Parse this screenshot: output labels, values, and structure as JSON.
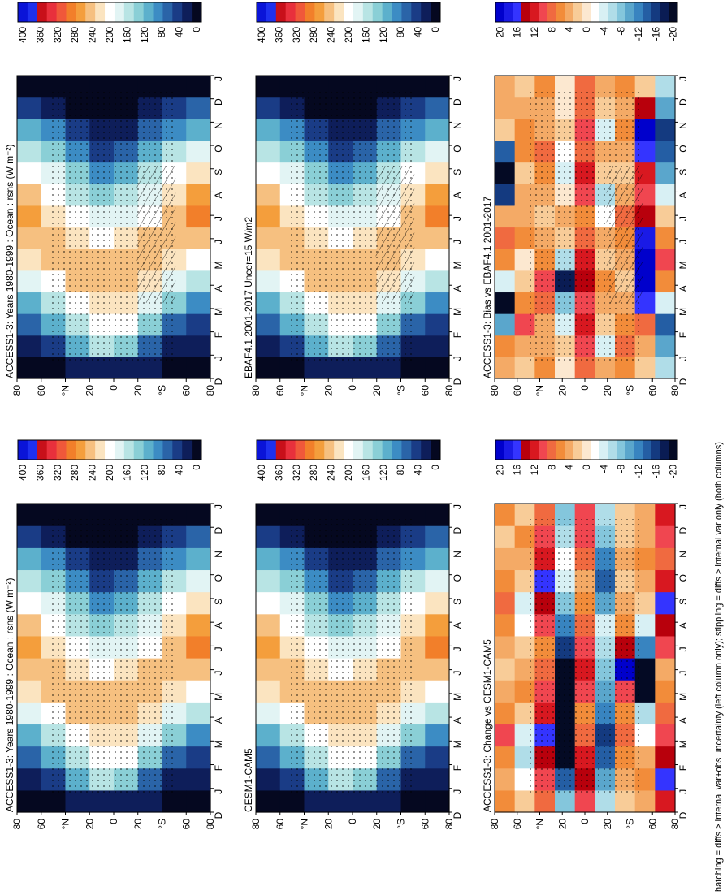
{
  "figure": {
    "footnote": "hatching = diffs > internal var+obs uncertainty (left column only); stippling = diffs > internal var only (both columns)"
  },
  "chart_data": [
    {
      "type": "heatmap",
      "panel": "left-top",
      "title": "ACCESS1-3: Years 1980-1999 : Ocean : rsns (W m⁻²)",
      "months": [
        "J",
        "F",
        "M",
        "A",
        "M",
        "J",
        "J",
        "A",
        "S",
        "O",
        "N",
        "D",
        "J"
      ],
      "months_edge_left": "D",
      "lat_ticks": [
        "80",
        "60",
        "°N",
        "20",
        "0",
        "20",
        "°S",
        "60",
        "80"
      ],
      "colorbar": {
        "labels": [
          "400",
          "360",
          "320",
          "280",
          "240",
          "200",
          "160",
          "120",
          "80",
          "40",
          "0"
        ],
        "range": [
          0,
          400
        ]
      },
      "cmap": "abs",
      "values": [
        [
          20,
          30,
          70,
          115,
          170,
          215,
          245,
          265,
          245,
          205,
          165,
          115,
          60,
          20
        ],
        [
          20,
          55,
          110,
          160,
          210,
          245,
          240,
          220,
          195,
          170,
          135,
          90,
          40,
          20
        ],
        [
          30,
          110,
          165,
          205,
          240,
          245,
          225,
          195,
          160,
          130,
          90,
          45,
          20,
          20
        ],
        [
          40,
          150,
          200,
          230,
          250,
          235,
          205,
          175,
          140,
          100,
          55,
          25,
          20,
          20
        ],
        [
          40,
          140,
          195,
          225,
          245,
          245,
          215,
          185,
          150,
          115,
          70,
          30,
          20,
          20
        ],
        [
          25,
          80,
          135,
          180,
          225,
          250,
          235,
          210,
          185,
          155,
          115,
          70,
          25,
          20
        ],
        [
          20,
          35,
          80,
          130,
          180,
          230,
          250,
          240,
          220,
          190,
          155,
          105,
          45,
          20
        ],
        [
          20,
          25,
          55,
          100,
          150,
          205,
          250,
          275,
          255,
          215,
          170,
          125,
          70,
          20
        ]
      ],
      "hatch": true,
      "stipple": true
    },
    {
      "type": "heatmap",
      "panel": "left-middle",
      "title": "EBAF4.1 2001-2017 Uncer=15 W/m2",
      "months": [
        "J",
        "F",
        "M",
        "A",
        "M",
        "J",
        "J",
        "A",
        "S",
        "O",
        "N",
        "D",
        "J"
      ],
      "months_edge_left": "D",
      "lat_ticks": [
        "80",
        "60",
        "°N",
        "20",
        "0",
        "20",
        "°S",
        "60",
        "80"
      ],
      "colorbar": {
        "labels": [
          "400",
          "360",
          "320",
          "280",
          "240",
          "200",
          "160",
          "120",
          "80",
          "40",
          "0"
        ],
        "range": [
          0,
          400
        ]
      },
      "cmap": "abs",
      "values": [
        [
          20,
          30,
          70,
          115,
          170,
          215,
          245,
          265,
          245,
          205,
          165,
          115,
          60,
          20
        ],
        [
          20,
          55,
          110,
          160,
          210,
          245,
          240,
          220,
          195,
          170,
          135,
          90,
          40,
          20
        ],
        [
          30,
          110,
          165,
          205,
          240,
          245,
          225,
          195,
          160,
          130,
          90,
          45,
          20,
          20
        ],
        [
          40,
          150,
          200,
          230,
          250,
          235,
          205,
          175,
          140,
          100,
          55,
          25,
          20,
          20
        ],
        [
          40,
          140,
          195,
          225,
          245,
          245,
          215,
          185,
          150,
          115,
          70,
          30,
          20,
          20
        ],
        [
          25,
          80,
          135,
          180,
          225,
          250,
          235,
          210,
          185,
          155,
          115,
          70,
          25,
          20
        ],
        [
          20,
          35,
          80,
          130,
          180,
          230,
          250,
          240,
          220,
          190,
          155,
          105,
          45,
          20
        ],
        [
          20,
          25,
          55,
          100,
          150,
          205,
          250,
          275,
          255,
          215,
          170,
          125,
          70,
          20
        ]
      ],
      "hatch": true,
      "stipple": true
    },
    {
      "type": "heatmap",
      "panel": "left-bottom",
      "title": "ACCESS1-3: Bias vs EBAF4.1 2001-2017",
      "months": [
        "J",
        "F",
        "M",
        "A",
        "M",
        "J",
        "J",
        "A",
        "S",
        "O",
        "N",
        "D",
        "J"
      ],
      "months_edge_left": "D",
      "lat_ticks": [
        "80",
        "60",
        "°N",
        "20",
        "0",
        "20",
        "°S",
        "60",
        "80"
      ],
      "colorbar": {
        "labels": [
          "20",
          "16",
          "12",
          "8",
          "4",
          "0",
          "-4",
          "-8",
          "-12",
          "-16",
          "-20"
        ],
        "range": [
          -20,
          20
        ]
      },
      "cmap": "diff",
      "values": [
        [
          4,
          6,
          -10,
          -22,
          -4,
          6,
          8,
          4,
          -16,
          -22,
          -14,
          2,
          3,
          4
        ],
        [
          2,
          4,
          10,
          6,
          2,
          0,
          6,
          4,
          3,
          2,
          6,
          5,
          3,
          2
        ],
        [
          6,
          4,
          3,
          8,
          10,
          6,
          4,
          2,
          4,
          6,
          8,
          4,
          3,
          6
        ],
        [
          0,
          2,
          -4,
          -8,
          -18,
          -6,
          2,
          4,
          0,
          -4,
          -2,
          2,
          0,
          0
        ],
        [
          8,
          10,
          12,
          10,
          14,
          12,
          8,
          6,
          10,
          12,
          8,
          10,
          8,
          8
        ],
        [
          4,
          -4,
          2,
          4,
          6,
          2,
          4,
          -2,
          -6,
          2,
          4,
          -4,
          2,
          4
        ],
        [
          6,
          8,
          6,
          4,
          2,
          4,
          6,
          8,
          4,
          2,
          4,
          6,
          4,
          6
        ],
        [
          2,
          4,
          8,
          16,
          24,
          22,
          18,
          14,
          10,
          12,
          16,
          20,
          14,
          2
        ],
        [
          -6,
          -10,
          -14,
          -4,
          6,
          10,
          6,
          2,
          -4,
          -10,
          -14,
          -16,
          -10,
          -6
        ]
      ],
      "hatch": true,
      "stipple": true
    },
    {
      "type": "heatmap",
      "panel": "right-top",
      "title": "ACCESS1-3: Years 1980-1999 : Ocean : rsns (W m⁻²)",
      "months": [
        "J",
        "F",
        "M",
        "A",
        "M",
        "J",
        "J",
        "A",
        "S",
        "O",
        "N",
        "D",
        "J"
      ],
      "months_edge_left": "D",
      "lat_ticks": [
        "80",
        "60",
        "°N",
        "20",
        "0",
        "20",
        "°S",
        "60",
        "80"
      ],
      "colorbar": {
        "labels": [
          "400",
          "360",
          "320",
          "280",
          "240",
          "200",
          "160",
          "120",
          "80",
          "40",
          "0"
        ],
        "range": [
          0,
          400
        ]
      },
      "cmap": "abs",
      "values": [
        [
          20,
          30,
          70,
          115,
          170,
          215,
          245,
          265,
          245,
          205,
          165,
          115,
          60,
          20
        ],
        [
          20,
          55,
          110,
          160,
          210,
          245,
          240,
          220,
          195,
          170,
          135,
          90,
          40,
          20
        ],
        [
          30,
          110,
          165,
          205,
          240,
          245,
          225,
          195,
          160,
          130,
          90,
          45,
          20,
          20
        ],
        [
          40,
          150,
          200,
          230,
          250,
          235,
          205,
          175,
          140,
          100,
          55,
          25,
          20,
          20
        ],
        [
          40,
          140,
          195,
          225,
          245,
          245,
          215,
          185,
          150,
          115,
          70,
          30,
          20,
          20
        ],
        [
          25,
          80,
          135,
          180,
          225,
          250,
          235,
          210,
          185,
          155,
          115,
          70,
          25,
          20
        ],
        [
          20,
          35,
          80,
          130,
          180,
          230,
          250,
          240,
          220,
          190,
          155,
          105,
          45,
          20
        ],
        [
          20,
          25,
          55,
          100,
          150,
          205,
          250,
          275,
          255,
          215,
          170,
          125,
          70,
          20
        ]
      ],
      "hatch": false,
      "stipple": true
    },
    {
      "type": "heatmap",
      "panel": "right-middle",
      "title": "CESM1-CAM5",
      "months": [
        "J",
        "F",
        "M",
        "A",
        "M",
        "J",
        "J",
        "A",
        "S",
        "O",
        "N",
        "D",
        "J"
      ],
      "months_edge_left": "D",
      "lat_ticks": [
        "80",
        "60",
        "°N",
        "20",
        "0",
        "20",
        "°S",
        "60",
        "80"
      ],
      "colorbar": {
        "labels": [
          "400",
          "360",
          "320",
          "280",
          "240",
          "200",
          "160",
          "120",
          "80",
          "40",
          "0"
        ],
        "range": [
          0,
          400
        ]
      },
      "cmap": "abs",
      "values": [
        [
          20,
          30,
          70,
          115,
          170,
          215,
          245,
          265,
          245,
          205,
          165,
          115,
          60,
          20
        ],
        [
          20,
          55,
          110,
          160,
          210,
          245,
          240,
          220,
          195,
          170,
          135,
          90,
          40,
          20
        ],
        [
          30,
          110,
          165,
          205,
          240,
          245,
          225,
          195,
          160,
          130,
          90,
          45,
          20,
          20
        ],
        [
          40,
          150,
          200,
          230,
          250,
          235,
          205,
          175,
          140,
          100,
          55,
          25,
          20,
          20
        ],
        [
          40,
          140,
          195,
          225,
          245,
          245,
          215,
          185,
          150,
          115,
          70,
          30,
          20,
          20
        ],
        [
          25,
          80,
          135,
          180,
          225,
          250,
          235,
          210,
          185,
          155,
          115,
          70,
          25,
          20
        ],
        [
          20,
          35,
          80,
          130,
          180,
          230,
          250,
          240,
          220,
          190,
          155,
          105,
          45,
          20
        ],
        [
          20,
          25,
          55,
          100,
          150,
          205,
          250,
          275,
          255,
          215,
          170,
          125,
          70,
          20
        ]
      ],
      "hatch": false,
      "stipple": true
    },
    {
      "type": "heatmap",
      "panel": "right-bottom",
      "title": "ACCESS1-3: Change vs CESM1-CAM5",
      "months": [
        "J",
        "F",
        "M",
        "A",
        "M",
        "J",
        "J",
        "A",
        "S",
        "O",
        "N",
        "D",
        "J"
      ],
      "months_edge_left": "D",
      "lat_ticks": [
        "80",
        "60",
        "°N",
        "20",
        "0",
        "20",
        "°S",
        "60",
        "80"
      ],
      "colorbar": {
        "labels": [
          "20",
          "16",
          "12",
          "8",
          "4",
          "0",
          "-4",
          "-8",
          "-12",
          "-16",
          "-20"
        ],
        "range": [
          -20,
          20
        ]
      },
      "cmap": "diff",
      "values": [
        [
          6,
          4,
          6,
          10,
          6,
          4,
          2,
          4,
          6,
          8,
          6,
          4,
          2,
          6
        ],
        [
          2,
          -2,
          -6,
          -4,
          2,
          6,
          4,
          2,
          -2,
          -4,
          2,
          4,
          6,
          2
        ],
        [
          8,
          10,
          14,
          16,
          12,
          10,
          8,
          6,
          10,
          14,
          16,
          12,
          10,
          8
        ],
        [
          -8,
          -14,
          -20,
          -24,
          -22,
          -26,
          -22,
          -16,
          -12,
          -8,
          -4,
          -2,
          -6,
          -8
        ],
        [
          10,
          14,
          12,
          8,
          6,
          10,
          12,
          10,
          8,
          6,
          4,
          8,
          10,
          10
        ],
        [
          -6,
          -10,
          -14,
          -16,
          -12,
          -10,
          -8,
          -6,
          -4,
          -10,
          -14,
          -12,
          -8,
          -6
        ],
        [
          2,
          4,
          6,
          8,
          6,
          10,
          20,
          14,
          6,
          4,
          2,
          4,
          2,
          2
        ],
        [
          4,
          6,
          4,
          -2,
          -6,
          -20,
          -26,
          -12,
          -4,
          2,
          4,
          6,
          4,
          4
        ],
        [
          12,
          16,
          14,
          10,
          8,
          6,
          4,
          10,
          14,
          16,
          12,
          8,
          10,
          12
        ]
      ],
      "hatch": false,
      "stipple": true
    }
  ]
}
